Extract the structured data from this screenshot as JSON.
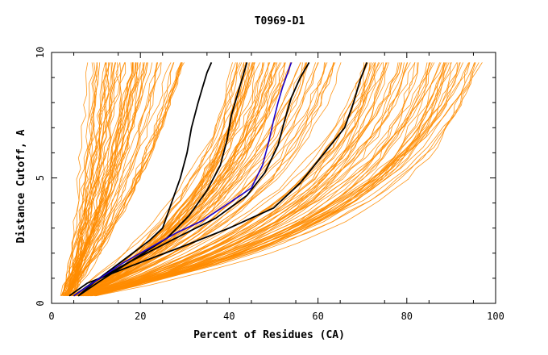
{
  "chart_data": {
    "type": "line",
    "title": "T0969-D1",
    "xlabel": "Percent of Residues (CA)",
    "ylabel": "Distance Cutoff, A",
    "xlim": [
      0,
      100
    ],
    "ylim": [
      0,
      10
    ],
    "x_ticks": [
      "0",
      "20",
      "40",
      "60",
      "80",
      "100"
    ],
    "y_ticks": [
      "0",
      "5",
      "10"
    ],
    "grid": false,
    "legend": "none",
    "colors": {
      "background_series": "#ff8c00",
      "black_series": "#000000",
      "highlight_series": "#1a00cc"
    },
    "background_series_count": 180,
    "background_bands": [
      {
        "x_at_d0": [
          2.0,
          5.0
        ],
        "x_at_d95": [
          8.0,
          30.0
        ],
        "curvature": 0.9,
        "count": 60
      },
      {
        "x_at_d0": [
          4.0,
          8.0
        ],
        "x_at_d95": [
          40.0,
          66.0
        ],
        "curvature": 2.0,
        "count": 60
      },
      {
        "x_at_d0": [
          5.0,
          10.0
        ],
        "x_at_d95": [
          70.0,
          97.0
        ],
        "curvature": 2.6,
        "count": 60
      }
    ],
    "series": [
      {
        "color": "#000000",
        "x": [
          6,
          10,
          16,
          22,
          25,
          27,
          29,
          30.5,
          31.5,
          33,
          34,
          35,
          36
        ],
        "y": [
          0.3,
          0.9,
          1.7,
          2.5,
          3.0,
          4.0,
          5.0,
          6.0,
          7.0,
          8.0,
          8.6,
          9.2,
          9.6
        ]
      },
      {
        "color": "#000000",
        "x": [
          6,
          11,
          18,
          26,
          31,
          35,
          38,
          39.5,
          40.5,
          42,
          43,
          44
        ],
        "y": [
          0.3,
          0.9,
          1.7,
          2.6,
          3.5,
          4.5,
          5.5,
          6.5,
          7.5,
          8.4,
          9.0,
          9.6
        ]
      },
      {
        "color": "#000000",
        "x": [
          5,
          9,
          17,
          28,
          37,
          44,
          48,
          51,
          52.5,
          54,
          56,
          58
        ],
        "y": [
          0.3,
          0.8,
          1.6,
          2.6,
          3.4,
          4.3,
          5.2,
          6.3,
          7.3,
          8.2,
          9.0,
          9.6
        ]
      },
      {
        "color": "#000000",
        "x": [
          4,
          8,
          18,
          30,
          40,
          50,
          56,
          61,
          66,
          68,
          69.5,
          71
        ],
        "y": [
          0.3,
          0.8,
          1.5,
          2.3,
          3.0,
          3.8,
          4.8,
          5.9,
          7.0,
          8.0,
          8.9,
          9.6
        ]
      },
      {
        "color": "#1a00cc",
        "x": [
          5,
          10,
          16,
          22,
          28,
          34,
          40,
          45,
          47.5,
          49,
          50,
          51,
          52,
          53,
          54
        ],
        "y": [
          0.3,
          0.9,
          1.6,
          2.2,
          2.8,
          3.3,
          4.0,
          4.6,
          5.5,
          6.5,
          7.3,
          8.0,
          8.6,
          9.1,
          9.6
        ]
      }
    ]
  }
}
